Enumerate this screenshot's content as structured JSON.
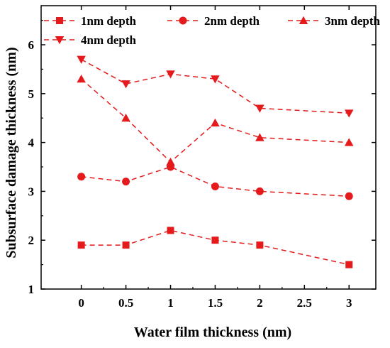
{
  "chart_data": {
    "type": "line",
    "xlabel": "Water film thickness (nm)",
    "ylabel": "Subsurface damage thickness (nm)",
    "xlim": [
      -0.45,
      3.3
    ],
    "ylim": [
      1,
      6.8
    ],
    "x_ticks": [
      0,
      0.5,
      1,
      1.5,
      2,
      2.5,
      3
    ],
    "x_tick_labels": [
      "0",
      "0.5",
      "1",
      "1.5",
      "2",
      "2.5",
      "3"
    ],
    "y_ticks": [
      1,
      2,
      3,
      4,
      5,
      6
    ],
    "y_tick_labels": [
      "1",
      "2",
      "3",
      "4",
      "5",
      "6"
    ],
    "x": [
      0,
      0.5,
      1,
      1.5,
      2,
      3
    ],
    "series": [
      {
        "name": "1nm depth",
        "marker": "square",
        "values": [
          1.9,
          1.9,
          2.2,
          2.0,
          1.9,
          1.5
        ]
      },
      {
        "name": "2nm depth",
        "marker": "circle",
        "values": [
          3.3,
          3.2,
          3.5,
          3.1,
          3.0,
          2.9
        ]
      },
      {
        "name": "3nm depth",
        "marker": "triangle-up",
        "values": [
          5.3,
          4.5,
          3.6,
          4.4,
          4.1,
          4.0
        ]
      },
      {
        "name": "4nm depth",
        "marker": "triangle-down",
        "values": [
          5.7,
          5.2,
          5.4,
          5.3,
          4.7,
          4.6
        ]
      }
    ],
    "color": "#e41a1c",
    "line_style": "dashed",
    "legend_position": "top",
    "grid": false
  }
}
